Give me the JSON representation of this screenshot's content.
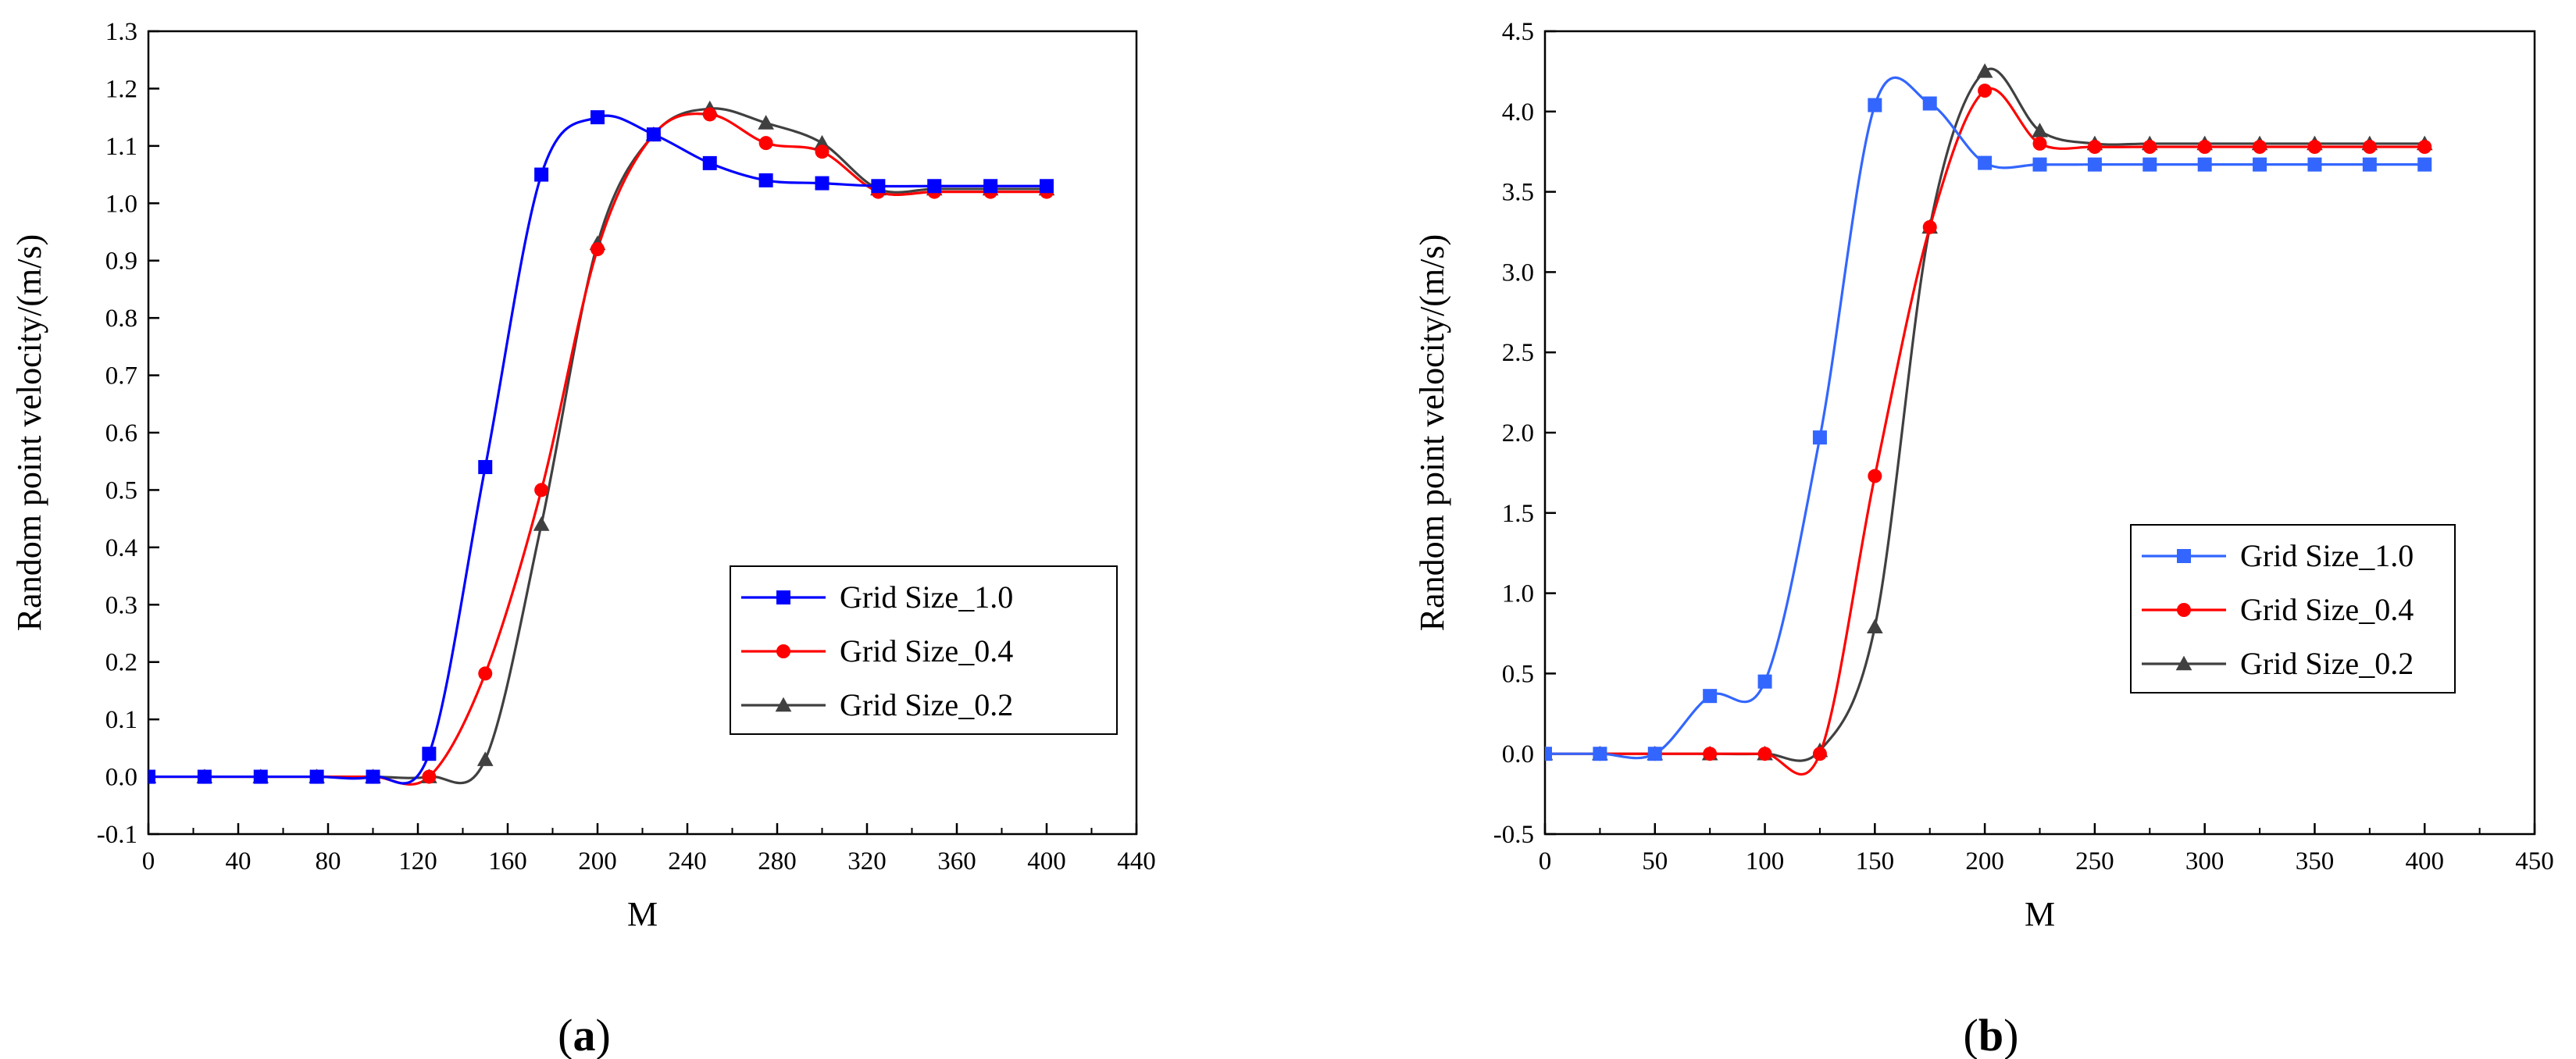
{
  "chart_data": [
    {
      "type": "line",
      "panel_label": "(a)",
      "xlabel": "M",
      "ylabel": "Random point velocity/(m/s)",
      "xlim": [
        0,
        440
      ],
      "ylim": [
        -0.1,
        1.3
      ],
      "xticks": [
        "0",
        "40",
        "80",
        "120",
        "160",
        "200",
        "240",
        "280",
        "320",
        "360",
        "400",
        "440"
      ],
      "yticks": [
        "-0.1",
        "0.0",
        "0.1",
        "0.2",
        "0.3",
        "0.4",
        "0.5",
        "0.6",
        "0.7",
        "0.8",
        "0.9",
        "1.0",
        "1.1",
        "1.2",
        "1.3"
      ],
      "legend_position": "bottom-right",
      "series": [
        {
          "name": "Grid Size_1.0",
          "color": "#0000ff",
          "marker": "square",
          "x": [
            0,
            25,
            50,
            75,
            100,
            125,
            150,
            175,
            200,
            225,
            250,
            275,
            300,
            325,
            350,
            375,
            400
          ],
          "y": [
            0,
            0,
            0,
            0,
            0,
            0.04,
            0.54,
            1.05,
            1.15,
            1.12,
            1.07,
            1.04,
            1.035,
            1.03,
            1.03,
            1.03,
            1.03
          ]
        },
        {
          "name": "Grid Size_0.4",
          "color": "#ff0000",
          "marker": "circle",
          "x": [
            0,
            25,
            50,
            75,
            100,
            125,
            150,
            175,
            200,
            225,
            250,
            275,
            300,
            325,
            350,
            375,
            400
          ],
          "y": [
            0,
            0,
            0,
            0,
            0,
            0,
            0.18,
            0.5,
            0.92,
            1.12,
            1.155,
            1.105,
            1.09,
            1.02,
            1.02,
            1.02,
            1.02
          ]
        },
        {
          "name": "Grid Size_0.2",
          "color": "#404040",
          "marker": "triangle",
          "x": [
            0,
            25,
            50,
            75,
            100,
            125,
            150,
            175,
            200,
            225,
            250,
            275,
            300,
            325,
            350,
            375,
            400
          ],
          "y": [
            0,
            0,
            0,
            0,
            0,
            0,
            0.03,
            0.44,
            0.93,
            1.12,
            1.165,
            1.14,
            1.105,
            1.025,
            1.025,
            1.025,
            1.025
          ]
        }
      ]
    },
    {
      "type": "line",
      "panel_label": "(b)",
      "xlabel": "M",
      "ylabel": "Random point velocity/(m/s)",
      "xlim": [
        0,
        450
      ],
      "ylim": [
        -0.5,
        4.5
      ],
      "xticks": [
        "0",
        "50",
        "100",
        "150",
        "200",
        "250",
        "300",
        "350",
        "400",
        "450"
      ],
      "yticks": [
        "-0.5",
        "0.0",
        "0.5",
        "1.0",
        "1.5",
        "2.0",
        "2.5",
        "3.0",
        "3.5",
        "4.0",
        "4.5"
      ],
      "legend_position": "right",
      "series": [
        {
          "name": "Grid Size_1.0",
          "color": "#3366ff",
          "marker": "square",
          "x": [
            0,
            25,
            50,
            75,
            100,
            125,
            150,
            175,
            200,
            225,
            250,
            275,
            300,
            325,
            350,
            375,
            400
          ],
          "y": [
            0,
            0,
            0,
            0.36,
            0.45,
            1.97,
            4.04,
            4.05,
            3.68,
            3.67,
            3.67,
            3.67,
            3.67,
            3.67,
            3.67,
            3.67,
            3.67
          ]
        },
        {
          "name": "Grid Size_0.4",
          "color": "#ff0000",
          "marker": "circle",
          "x": [
            0,
            25,
            50,
            75,
            100,
            125,
            150,
            175,
            200,
            225,
            250,
            275,
            300,
            325,
            350,
            375,
            400
          ],
          "y": [
            0,
            0,
            0,
            0,
            0,
            0,
            1.73,
            3.28,
            4.13,
            3.8,
            3.78,
            3.78,
            3.78,
            3.78,
            3.78,
            3.78,
            3.78
          ]
        },
        {
          "name": "Grid Size_0.2",
          "color": "#404040",
          "marker": "triangle",
          "x": [
            0,
            25,
            50,
            75,
            100,
            125,
            150,
            175,
            200,
            225,
            250,
            275,
            300,
            325,
            350,
            375,
            400
          ],
          "y": [
            0,
            0,
            0,
            0,
            0,
            0.02,
            0.79,
            3.28,
            4.25,
            3.88,
            3.8,
            3.8,
            3.8,
            3.8,
            3.8,
            3.8,
            3.8
          ]
        }
      ]
    }
  ]
}
